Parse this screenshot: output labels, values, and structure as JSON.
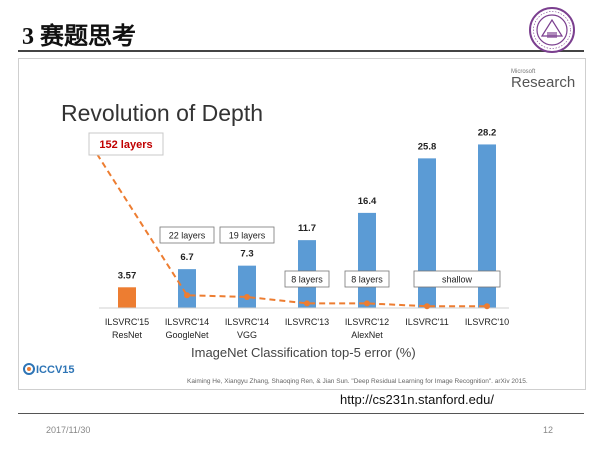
{
  "slide": {
    "title": "3 赛题思考",
    "url": "http://cs231n.stanford.edu/",
    "date": "2017/11/30",
    "page_number": "12",
    "logo_name": "university-seal"
  },
  "figure": {
    "brand_small": "Microsoft",
    "brand": "Research",
    "callout": "152 layers",
    "iccv_logo": "ICCV15",
    "citation": "Kaiming He, Xiangyu Zhang, Shaoqing Ren, & Jian Sun. \"Deep Residual Learning for Image Recognition\". arXiv 2015."
  },
  "chart_data": {
    "type": "bar",
    "title": "Revolution of Depth",
    "xlabel": "ImageNet Classification top-5 error (%)",
    "ylabel": "",
    "ylim": [
      0,
      30
    ],
    "categories": [
      {
        "line1": "ILSVRC'15",
        "line2": "ResNet"
      },
      {
        "line1": "ILSVRC'14",
        "line2": "GoogleNet"
      },
      {
        "line1": "ILSVRC'14",
        "line2": "VGG"
      },
      {
        "line1": "ILSVRC'13",
        "line2": ""
      },
      {
        "line1": "ILSVRC'12",
        "line2": "AlexNet"
      },
      {
        "line1": "ILSVRC'11",
        "line2": ""
      },
      {
        "line1": "ILSVRC'10",
        "line2": ""
      }
    ],
    "values": [
      3.57,
      6.7,
      7.3,
      11.7,
      16.4,
      25.8,
      28.2
    ],
    "value_labels": [
      "3.57",
      "6.7",
      "7.3",
      "11.7",
      "16.4",
      "25.8",
      "28.2"
    ],
    "layer_labels": [
      "152 layers",
      "22 layers",
      "19 layers",
      "8 layers",
      "8 layers",
      "shallow",
      "shallow"
    ],
    "depth_line_levels": [
      15.2,
      2.2,
      1.9,
      0.8,
      0.8,
      0.3,
      0.3
    ],
    "colors": {
      "highlight": "#ed7d31",
      "bar": "#5b9bd5",
      "depth_line": "#ed7d31",
      "callout_text": "#c00000",
      "title": "#333333"
    },
    "grid": false,
    "legend": "none"
  }
}
